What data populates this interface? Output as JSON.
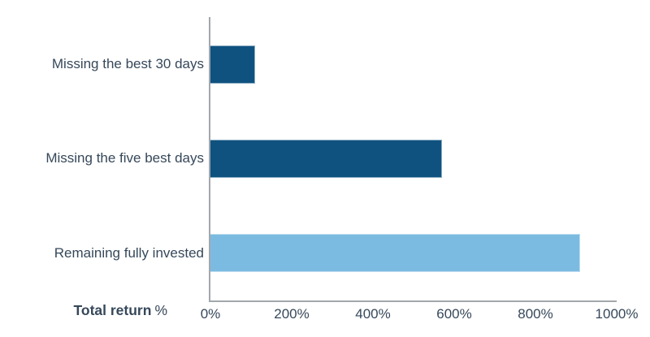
{
  "chart_data": {
    "type": "bar",
    "orientation": "horizontal",
    "categories": [
      "Missing the best 30 days",
      "Missing the five best days",
      "Remaining fully invested"
    ],
    "values": [
      110,
      570,
      910
    ],
    "value_unit": "%",
    "xlabel": "Total return %",
    "xlim": [
      0,
      1000
    ],
    "x_ticks": [
      0,
      200,
      400,
      600,
      800,
      1000
    ],
    "x_tick_labels": [
      "0%",
      "200%",
      "400%",
      "600%",
      "800%",
      "1000%"
    ],
    "bar_colors": [
      "#0F5280",
      "#0F5280",
      "#7CBBE1"
    ],
    "grid": false,
    "legend_position": "none"
  },
  "axis_title": {
    "bold_text": "Total return",
    "unit_suffix": "%"
  },
  "colors": {
    "dark_blue": "#0F5280",
    "light_blue": "#7CBBE1",
    "axis_line": "#A3A7AB",
    "text": "#36485A",
    "background": "#FFFFFF"
  }
}
